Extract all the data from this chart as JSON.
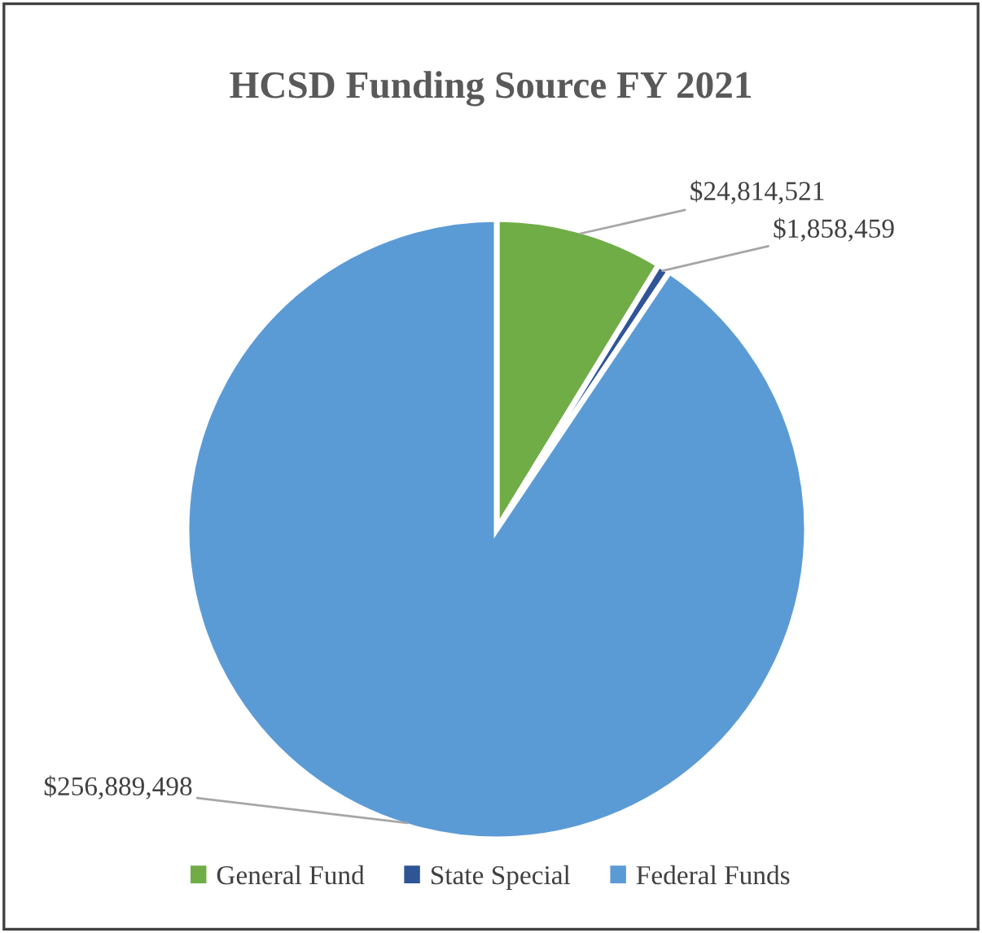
{
  "chart_data": {
    "type": "pie",
    "title": "HCSD Funding Source FY 2021",
    "categories": [
      "General Fund",
      "State Special",
      "Federal Funds"
    ],
    "values": [
      24814521,
      1858459,
      256889498
    ],
    "colors": [
      "#70ad47",
      "#2f5597",
      "#5b9bd5"
    ],
    "value_labels": [
      "$24,814,521",
      "$1,858,459",
      "$256,889,498"
    ],
    "legend": "bottom"
  }
}
